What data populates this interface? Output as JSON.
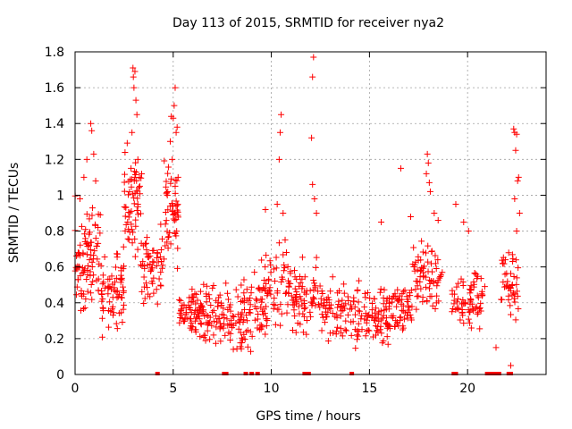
{
  "chart_data": {
    "type": "scatter",
    "title": "Day 113 of 2015, SRMTID for receiver nya2",
    "xlabel": "GPS time / hours",
    "ylabel": "SRMTID / TECUs",
    "xlim": [
      0,
      24
    ],
    "ylim": [
      0,
      1.8
    ],
    "xticks": [
      0,
      5,
      10,
      15,
      20
    ],
    "yticks": [
      0,
      0.2,
      0.4,
      0.6,
      0.8,
      1.0,
      1.2,
      1.4,
      1.6,
      1.8
    ],
    "ytick_labels": [
      "0",
      "0.2",
      "0.4",
      "0.6",
      "0.8",
      "1",
      "1.2",
      "1.4",
      "1.6",
      "1.8"
    ],
    "grid": true,
    "marker": "plus",
    "color": "#ff0000",
    "zero_markers_x": [
      4.2,
      7.6,
      7.7,
      8.7,
      9.0,
      9.3,
      11.7,
      11.9,
      14.1,
      19.3,
      19.4,
      21.0,
      21.2,
      21.4,
      21.6,
      22.1,
      22.2
    ],
    "segments": [
      {
        "x0": 0.0,
        "x1": 1.3,
        "n": 90,
        "lo": 0.25,
        "hi": 1.05
      },
      {
        "x0": 1.3,
        "x1": 2.5,
        "n": 70,
        "lo": 0.15,
        "hi": 0.8
      },
      {
        "x0": 2.5,
        "x1": 3.4,
        "n": 60,
        "lo": 0.5,
        "hi": 1.35
      },
      {
        "x0": 3.4,
        "x1": 4.5,
        "n": 55,
        "lo": 0.3,
        "hi": 0.9
      },
      {
        "x0": 4.5,
        "x1": 5.3,
        "n": 55,
        "lo": 0.5,
        "hi": 1.3
      },
      {
        "x0": 5.3,
        "x1": 6.5,
        "n": 70,
        "lo": 0.15,
        "hi": 0.55
      },
      {
        "x0": 6.5,
        "x1": 8.0,
        "n": 75,
        "lo": 0.1,
        "hi": 0.55
      },
      {
        "x0": 8.0,
        "x1": 9.5,
        "n": 70,
        "lo": 0.05,
        "hi": 0.6
      },
      {
        "x0": 9.5,
        "x1": 11.0,
        "n": 75,
        "lo": 0.1,
        "hi": 0.8
      },
      {
        "x0": 11.0,
        "x1": 12.5,
        "n": 70,
        "lo": 0.15,
        "hi": 0.7
      },
      {
        "x0": 12.5,
        "x1": 14.5,
        "n": 85,
        "lo": 0.1,
        "hi": 0.6
      },
      {
        "x0": 14.5,
        "x1": 16.0,
        "n": 70,
        "lo": 0.1,
        "hi": 0.55
      },
      {
        "x0": 16.0,
        "x1": 17.2,
        "n": 60,
        "lo": 0.15,
        "hi": 0.6
      },
      {
        "x0": 17.2,
        "x1": 18.8,
        "n": 70,
        "lo": 0.3,
        "hi": 0.8
      },
      {
        "x0": 19.2,
        "x1": 20.9,
        "n": 75,
        "lo": 0.2,
        "hi": 0.65
      },
      {
        "x0": 21.7,
        "x1": 22.6,
        "n": 45,
        "lo": 0.2,
        "hi": 0.8
      }
    ],
    "peaks": [
      {
        "x": 0.8,
        "y": 1.4
      },
      {
        "x": 0.85,
        "y": 1.36
      },
      {
        "x": 0.6,
        "y": 1.2
      },
      {
        "x": 0.45,
        "y": 1.1
      },
      {
        "x": 0.95,
        "y": 1.23
      },
      {
        "x": 1.05,
        "y": 1.08
      },
      {
        "x": 0.25,
        "y": 0.98
      },
      {
        "x": 2.95,
        "y": 1.71
      },
      {
        "x": 2.97,
        "y": 1.66
      },
      {
        "x": 3.05,
        "y": 1.69
      },
      {
        "x": 3.0,
        "y": 1.6
      },
      {
        "x": 3.1,
        "y": 1.53
      },
      {
        "x": 3.15,
        "y": 1.45
      },
      {
        "x": 2.9,
        "y": 1.35
      },
      {
        "x": 3.2,
        "y": 1.2
      },
      {
        "x": 2.85,
        "y": 1.15
      },
      {
        "x": 3.05,
        "y": 1.1
      },
      {
        "x": 3.3,
        "y": 1.05
      },
      {
        "x": 4.9,
        "y": 1.44
      },
      {
        "x": 5.0,
        "y": 1.43
      },
      {
        "x": 5.1,
        "y": 1.6
      },
      {
        "x": 5.05,
        "y": 1.5
      },
      {
        "x": 4.85,
        "y": 1.3
      },
      {
        "x": 5.15,
        "y": 1.35
      },
      {
        "x": 5.2,
        "y": 1.38
      },
      {
        "x": 4.95,
        "y": 1.2
      },
      {
        "x": 5.25,
        "y": 1.1
      },
      {
        "x": 5.1,
        "y": 1.05
      },
      {
        "x": 4.7,
        "y": 1.0
      },
      {
        "x": 10.5,
        "y": 1.45
      },
      {
        "x": 10.45,
        "y": 1.35
      },
      {
        "x": 10.4,
        "y": 1.2
      },
      {
        "x": 10.3,
        "y": 0.95
      },
      {
        "x": 10.6,
        "y": 0.9
      },
      {
        "x": 9.7,
        "y": 0.92
      },
      {
        "x": 12.15,
        "y": 1.77
      },
      {
        "x": 12.1,
        "y": 1.66
      },
      {
        "x": 12.05,
        "y": 1.32
      },
      {
        "x": 12.1,
        "y": 1.06
      },
      {
        "x": 12.2,
        "y": 0.98
      },
      {
        "x": 12.3,
        "y": 0.9
      },
      {
        "x": 16.6,
        "y": 1.15
      },
      {
        "x": 15.6,
        "y": 0.85
      },
      {
        "x": 17.1,
        "y": 0.88
      },
      {
        "x": 17.95,
        "y": 1.23
      },
      {
        "x": 18.0,
        "y": 1.18
      },
      {
        "x": 17.9,
        "y": 1.12
      },
      {
        "x": 18.05,
        "y": 1.07
      },
      {
        "x": 18.1,
        "y": 1.02
      },
      {
        "x": 18.3,
        "y": 0.9
      },
      {
        "x": 18.5,
        "y": 0.86
      },
      {
        "x": 19.4,
        "y": 0.95
      },
      {
        "x": 20.05,
        "y": 0.8
      },
      {
        "x": 19.8,
        "y": 0.85
      },
      {
        "x": 22.35,
        "y": 1.37
      },
      {
        "x": 22.4,
        "y": 1.35
      },
      {
        "x": 22.5,
        "y": 1.34
      },
      {
        "x": 22.45,
        "y": 1.25
      },
      {
        "x": 22.6,
        "y": 1.1
      },
      {
        "x": 22.55,
        "y": 1.08
      },
      {
        "x": 22.4,
        "y": 0.98
      },
      {
        "x": 22.65,
        "y": 0.9
      },
      {
        "x": 22.5,
        "y": 0.8
      },
      {
        "x": 21.45,
        "y": 0.15
      },
      {
        "x": 22.2,
        "y": 0.05
      }
    ]
  }
}
